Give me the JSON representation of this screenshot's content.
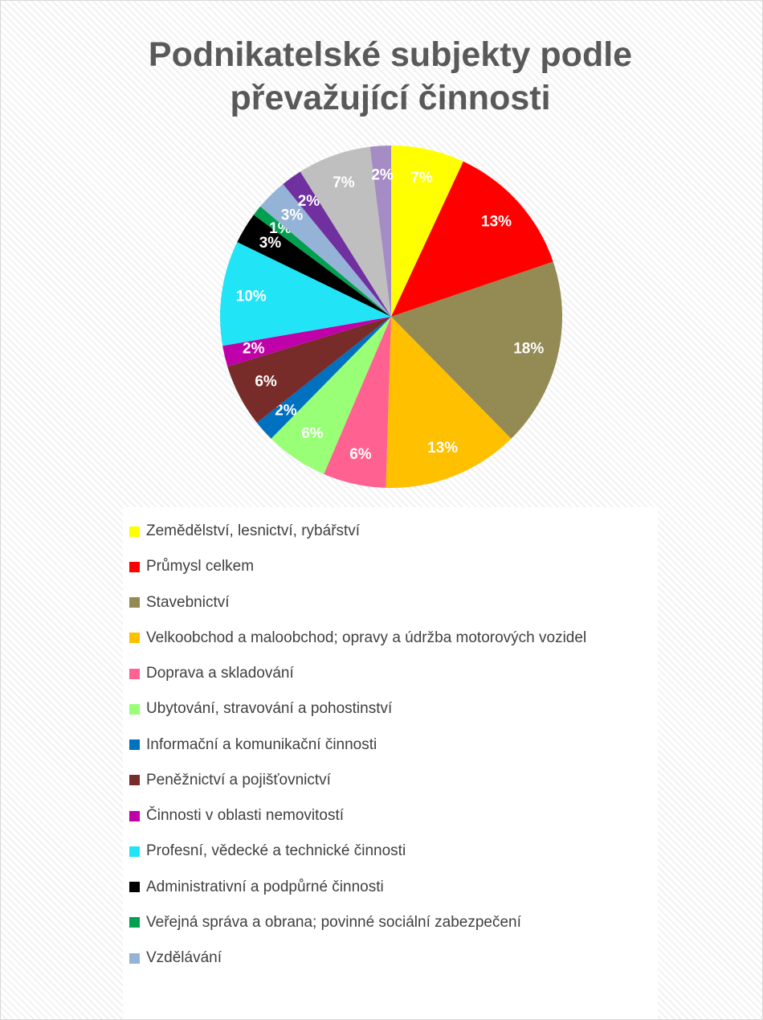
{
  "chart_data": {
    "type": "pie",
    "title": "Podnikatelské subjekty podle převažující činnosti",
    "categories": [
      "Zemědělství, lesnictví, rybářství",
      "Průmysl celkem",
      "Stavebnictví",
      "Velkoobchod a maloobchod; opravy a údržba motorových vozidel",
      "Doprava a skladování",
      "Ubytování, stravování a pohostinství",
      "Informační a komunikační činnosti",
      "Peněžnictví a pojišťovnictví",
      "Činnosti v oblasti nemovitostí",
      "Profesní, vědecké a technické činnosti",
      "Administrativní a podpůrné činnosti",
      "Veřejná správa a obrana; povinné sociální zabezpečení",
      "Vzdělávání",
      null,
      null,
      null
    ],
    "values": [
      7,
      13,
      18,
      13,
      6,
      6,
      2,
      6,
      2,
      10,
      3,
      1,
      3,
      2,
      7,
      2
    ],
    "value_labels": [
      "7%",
      "13%",
      "18%",
      "13%",
      "6%",
      "6%",
      "2%",
      "6%",
      "2%",
      "10%",
      "3%",
      "1%",
      "3%",
      "2%",
      "7%",
      "2%"
    ],
    "colors": [
      "#ffff00",
      "#ff0000",
      "#948a54",
      "#ffc000",
      "#ff6190",
      "#99ff77",
      "#0070c0",
      "#772c2a",
      "#c000a8",
      "#22e4f7",
      "#000000",
      "#00a050",
      "#95b3d7",
      "#7030a0",
      "#bfbfbf",
      "#a58cc4"
    ]
  }
}
